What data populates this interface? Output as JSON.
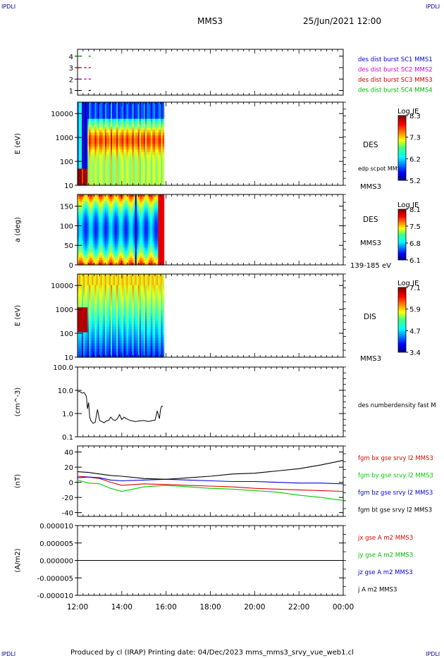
{
  "header": {
    "corner_tl": "IPDLI",
    "corner_tr": "IPDLI",
    "corner_bl": "IPDLI",
    "corner_br": "IPDLI",
    "spacecraft": "MMS3",
    "datetime": "25/Jun/2021 12:00"
  },
  "footer": {
    "text": "Produced by cl (IRAP)   Printing date: 04/Dec/2023   mms_mms3_srvy_vue_web1.cl"
  },
  "chart_data": [
    {
      "type": "scatter",
      "panel": "burst-availability",
      "yticks": [
        "4",
        "3",
        "2",
        "1"
      ],
      "ylim": [
        0.6,
        4.6
      ],
      "legend": [
        {
          "label": "des dist burst SC1 MMS1",
          "color": "#0000cc"
        },
        {
          "label": "des dist burst SC2 MMS2",
          "color": "#cc00cc"
        },
        {
          "label": "des dist burst SC3 MMS3",
          "color": "#cc0000"
        },
        {
          "label": "des dist burst SC4 MMS4",
          "color": "#00bb00"
        }
      ],
      "series": [
        {
          "sc": 4,
          "color": "#00bb00",
          "hours": [
            0.05,
            0.55
          ]
        },
        {
          "sc": 3,
          "color": "#cc0000",
          "hours": [
            0.05,
            0.35,
            0.55
          ]
        },
        {
          "sc": 2,
          "color": "#cc00cc",
          "hours": [
            0.05,
            0.35,
            0.55
          ]
        },
        {
          "sc": 1,
          "color": "#0000cc",
          "hours": [
            0.55
          ]
        }
      ]
    },
    {
      "type": "heatmap",
      "panel": "des-energy",
      "ylabel": "E (eV)",
      "yscale": "log",
      "ylim": [
        10,
        30000
      ],
      "yticks": [
        "10000",
        "1000",
        "100",
        "10"
      ],
      "data_end_hour": 3.9,
      "label": "DES",
      "label2": "edp scpot MMS3",
      "label3": "MMS3",
      "colorbar": {
        "title": "Log JE",
        "ticks": [
          "8.3",
          "7.3",
          "6.2",
          "5.2"
        ]
      }
    },
    {
      "type": "heatmap",
      "panel": "des-pitch-angle",
      "ylabel": "a (deg)",
      "ylim": [
        0,
        180
      ],
      "yticks": [
        "150",
        "100",
        "50",
        "0"
      ],
      "data_end_hour": 3.9,
      "label": "DES",
      "label2": "MMS3",
      "label3": "139-185 eV",
      "colorbar": {
        "title": "Log JE",
        "ticks": [
          "8.1",
          "7.5",
          "6.8",
          "6.1"
        ]
      }
    },
    {
      "type": "heatmap",
      "panel": "dis-energy",
      "ylabel": "E (eV)",
      "yscale": "log",
      "ylim": [
        10,
        30000
      ],
      "yticks": [
        "10000",
        "1000",
        "100",
        "10"
      ],
      "data_end_hour": 3.9,
      "label": "DIS",
      "label3": "MMS3",
      "colorbar": {
        "title": "Log JE",
        "ticks": [
          "7.1",
          "5.9",
          "4.7",
          "3.4"
        ]
      }
    },
    {
      "type": "line",
      "panel": "density",
      "ylabel": "(cm^-3)",
      "yscale": "log",
      "ylim": [
        0.1,
        100
      ],
      "yticks": [
        "100.0",
        "10.0",
        "1.0",
        "0.1"
      ],
      "label": "des numberdensity fast M",
      "series": [
        {
          "color": "#000000",
          "x": [
            0.0,
            0.1,
            0.2,
            0.3,
            0.4,
            0.45,
            0.5,
            0.55,
            0.6,
            0.7,
            0.8,
            0.9,
            1.0,
            1.1,
            1.2,
            1.3,
            1.4,
            1.5,
            1.6,
            1.7,
            1.8,
            1.9,
            2.0,
            2.1,
            2.2,
            2.4,
            2.6,
            2.8,
            3.0,
            3.2,
            3.4,
            3.5,
            3.6,
            3.7,
            3.75,
            3.8,
            3.85
          ],
          "y": [
            8.5,
            9.0,
            7.5,
            8.0,
            5.5,
            1.6,
            3.0,
            0.7,
            0.5,
            0.38,
            0.42,
            1.5,
            0.5,
            0.45,
            0.4,
            0.48,
            0.5,
            0.7,
            0.55,
            0.5,
            0.6,
            0.9,
            0.55,
            0.7,
            0.6,
            0.5,
            0.45,
            0.48,
            0.5,
            0.45,
            0.5,
            0.52,
            1.3,
            0.6,
            1.5,
            2.1,
            2.0
          ]
        }
      ]
    },
    {
      "type": "line",
      "panel": "fgm",
      "ylabel": "(nT)",
      "ylim": [
        -45,
        48
      ],
      "yticks": [
        "40",
        "20",
        "0",
        "-20",
        "-40"
      ],
      "series": [
        {
          "name": "fgm bx gse srvy l2 MMS3",
          "color": "#dd0000",
          "x": [
            0,
            0.5,
            1,
            1.5,
            2,
            3,
            4,
            5,
            6,
            7,
            8,
            9,
            10,
            11,
            12
          ],
          "y": [
            8,
            7,
            5,
            0,
            -4,
            -2,
            -3,
            -4,
            -5,
            -6,
            -8,
            -9,
            -10,
            -11,
            -12
          ]
        },
        {
          "name": "fgm by gse srvy l2 MMS3",
          "color": "#00cc00",
          "x": [
            0,
            0.5,
            1,
            1.5,
            2,
            3,
            4,
            5,
            6,
            7,
            8,
            9,
            10,
            11,
            12
          ],
          "y": [
            3,
            -1,
            -2,
            -8,
            -12,
            -6,
            -4,
            -6,
            -8,
            -9,
            -11,
            -13,
            -17,
            -20,
            -24
          ]
        },
        {
          "name": "fgm bz gse srvy l2 MMS3",
          "color": "#0000dd",
          "x": [
            0,
            0.5,
            1,
            1.5,
            2,
            3,
            4,
            5,
            6,
            7,
            8,
            9,
            10,
            11,
            12
          ],
          "y": [
            6,
            7,
            6,
            3,
            2,
            3,
            4,
            3,
            2,
            1,
            1,
            0,
            -1,
            -1,
            -2
          ]
        },
        {
          "name": "fgm bt gse srvy l2 MMS3",
          "color": "#000000",
          "x": [
            0,
            0.5,
            1,
            1.5,
            2,
            3,
            4,
            5,
            6,
            7,
            8,
            9,
            10,
            11,
            12
          ],
          "y": [
            14,
            13,
            11,
            9,
            8,
            5,
            4,
            6,
            8,
            11,
            12,
            15,
            18,
            23,
            29
          ]
        }
      ]
    },
    {
      "type": "line",
      "panel": "current",
      "ylabel": "(A/m2)",
      "ylim": [
        -1e-05,
        1e-05
      ],
      "yticks": [
        "0.000010",
        "0.000005",
        "0.000000",
        "-0.000005",
        "-0.000010"
      ],
      "xlabel": "",
      "xticks": [
        "12:00",
        "14:00",
        "16:00",
        "18:00",
        "20:00",
        "22:00",
        "00:00"
      ],
      "series": [
        {
          "name": "jx gse A m2 MMS3",
          "color": "#dd0000",
          "x": [
            0,
            12
          ],
          "y": [
            0,
            0
          ]
        },
        {
          "name": "jy gse A m2 MMS3",
          "color": "#00bb00",
          "x": [
            0,
            12
          ],
          "y": [
            0,
            0
          ]
        },
        {
          "name": "jz gse A m2 MMS3",
          "color": "#0000dd",
          "x": [
            0,
            12
          ],
          "y": [
            0,
            0
          ]
        },
        {
          "name": "j A m2 MMS3",
          "color": "#000000",
          "x": [
            0,
            12
          ],
          "y": [
            0,
            0
          ]
        }
      ]
    }
  ]
}
